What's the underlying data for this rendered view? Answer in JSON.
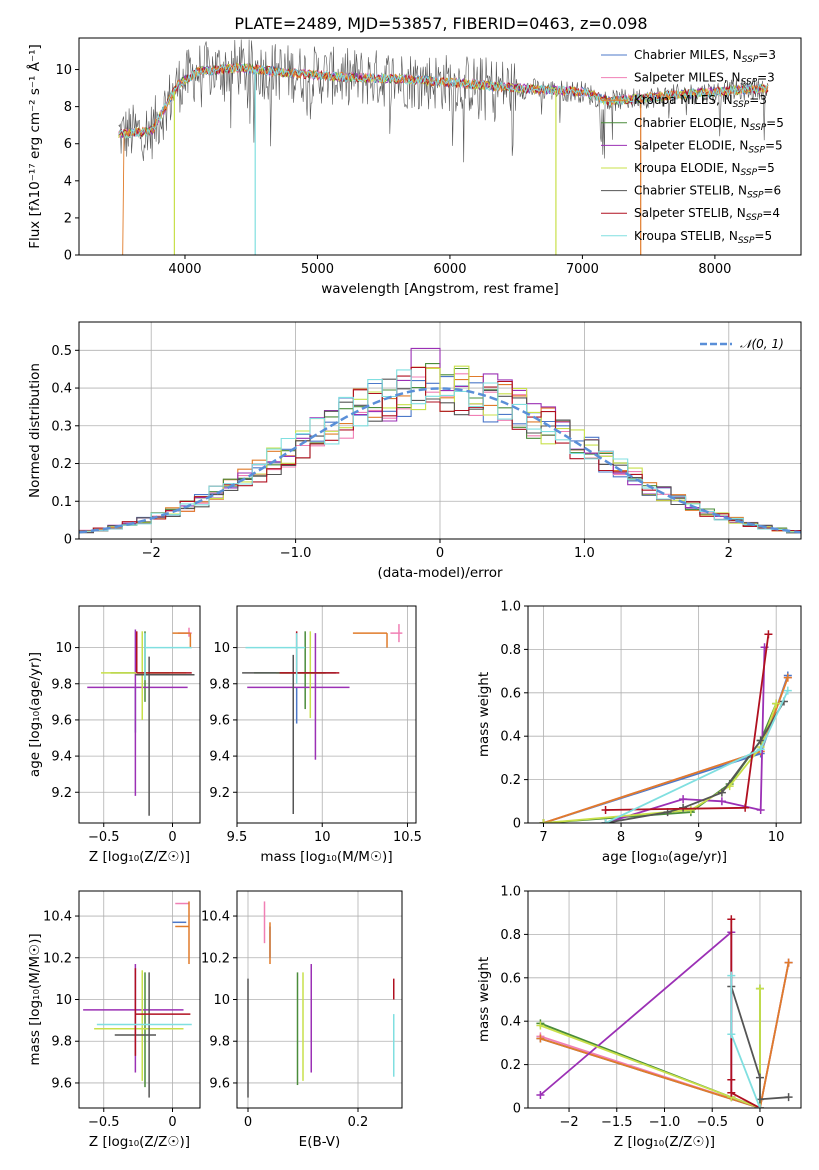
{
  "title": "PLATE=2489, MJD=53857, FIBERID=0463, z=0.098",
  "chart_data": [
    {
      "id": "spectrum",
      "type": "line",
      "xlabel": "wavelength [Angstrom, rest frame]",
      "ylabel": "Flux [fλ10⁻¹⁷ erg cm⁻² s⁻¹ Å⁻¹]",
      "xlim": [
        3200,
        8650
      ],
      "ylim": [
        0,
        11.7
      ],
      "xticks": [
        4000,
        5000,
        6000,
        7000,
        8000
      ],
      "yticks": [
        0,
        2,
        4,
        6,
        8,
        10
      ],
      "grid": false,
      "legend_position": "top-right",
      "data_start": 3500,
      "data_end": 8400,
      "series": [
        {
          "name": "Chabrier MILES, N",
          "sub": "SSP",
          "suffix": "=3",
          "color": "#4c78c9"
        },
        {
          "name": "Salpeter MILES, N",
          "sub": "SSP",
          "suffix": "=3",
          "color": "#f07fb4"
        },
        {
          "name": "Kroupa MILES, N",
          "sub": "SSP",
          "suffix": "=3",
          "color": "#e07b2a"
        },
        {
          "name": "Chabrier ELODIE, N",
          "sub": "SSP",
          "suffix": "=5",
          "color": "#4a8c3a"
        },
        {
          "name": "Salpeter ELODIE, N",
          "sub": "SSP",
          "suffix": "=5",
          "color": "#9b30b5"
        },
        {
          "name": "Kroupa ELODIE, N",
          "sub": "SSP",
          "suffix": "=5",
          "color": "#c8e04a"
        },
        {
          "name": "Chabrier STELIB, N",
          "sub": "SSP",
          "suffix": "=6",
          "color": "#555555"
        },
        {
          "name": "Salpeter STELIB, N",
          "sub": "SSP",
          "suffix": "=4",
          "color": "#b01020"
        },
        {
          "name": "Kroupa STELIB, N",
          "sub": "SSP",
          "suffix": "=5",
          "color": "#80dfe0"
        }
      ],
      "continuum": [
        [
          3500,
          6.5
        ],
        [
          3750,
          6.7
        ],
        [
          3950,
          9.2
        ],
        [
          4100,
          9.9
        ],
        [
          4400,
          10.1
        ],
        [
          4800,
          9.8
        ],
        [
          5200,
          9.6
        ],
        [
          5600,
          9.5
        ],
        [
          6000,
          9.3
        ],
        [
          6500,
          9.0
        ],
        [
          7000,
          8.8
        ],
        [
          7200,
          8.3
        ],
        [
          7500,
          8.5
        ],
        [
          8000,
          8.8
        ],
        [
          8400,
          9.0
        ]
      ],
      "dips": [
        {
          "x": 3920,
          "color": "#c8e04a"
        },
        {
          "x": 4530,
          "color": "#80dfe0"
        },
        {
          "x": 6800,
          "color": "#c8e04a"
        },
        {
          "x": 7440,
          "color": "#e07b2a"
        }
      ]
    },
    {
      "id": "residuals",
      "type": "histogram",
      "xlabel": "(data-model)/error",
      "ylabel": "Normed distribution",
      "xlim": [
        -2.5,
        2.5
      ],
      "ylim": [
        0,
        0.575
      ],
      "xticks": [
        -2,
        -1,
        0,
        1,
        2
      ],
      "yticks": [
        0.0,
        0.1,
        0.2,
        0.3,
        0.4,
        0.5
      ],
      "grid": true,
      "legend_position": "top-right",
      "gaussian": {
        "label": "𝒩(0, 1)",
        "color": "#5a8fd8",
        "mean": 0,
        "sigma": 1
      },
      "bin_width": 0.1
    },
    {
      "id": "age_vs_Z",
      "type": "errorbar",
      "xlabel": "Z [log₁₀(Z/Z☉)]",
      "ylabel": "age  [log₁₀(age/yr)]",
      "xlim": [
        -0.68,
        0.2
      ],
      "ylim": [
        9.03,
        10.23
      ],
      "xticks": [
        -0.5,
        0.0
      ],
      "yticks": [
        9.2,
        9.4,
        9.6,
        9.8,
        10.0
      ],
      "grid": true,
      "points": [
        {
          "c": "#4c78c9",
          "x": -0.27,
          "xerr": [
            0.0,
            0.0
          ],
          "y": 9.78,
          "yerr": [
            0.25,
            0.0
          ]
        },
        {
          "c": "#f07fb4",
          "x": 0.12,
          "xerr": [
            0.08,
            0.02
          ],
          "y": 10.08,
          "yerr": [
            0.02,
            0.03
          ]
        },
        {
          "c": "#e07b2a",
          "x": 0.13,
          "xerr": [
            0.13,
            0.0
          ],
          "y": 10.08,
          "yerr": [
            0.08,
            0.0
          ]
        },
        {
          "c": "#4a8c3a",
          "x": -0.2,
          "xerr": [
            0.25,
            0.18
          ],
          "y": 9.86,
          "yerr": [
            0.16,
            0.23
          ]
        },
        {
          "c": "#9b30b5",
          "x": -0.27,
          "xerr": [
            0.35,
            0.38
          ],
          "y": 9.78,
          "yerr": [
            0.6,
            0.32
          ]
        },
        {
          "c": "#c8e04a",
          "x": -0.22,
          "xerr": [
            0.3,
            0.32
          ],
          "y": 9.86,
          "yerr": [
            0.26,
            0.23
          ]
        },
        {
          "c": "#555555",
          "x": -0.17,
          "xerr": [
            0.1,
            0.33
          ],
          "y": 9.85,
          "yerr": [
            0.78,
            0.1
          ]
        },
        {
          "c": "#b01020",
          "x": -0.26,
          "xerr": [
            0.0,
            0.4
          ],
          "y": 9.86,
          "yerr": [
            0.0,
            0.23
          ]
        },
        {
          "c": "#80dfe0",
          "x": -0.2,
          "xerr": [
            0.0,
            0.34
          ],
          "y": 10.0,
          "yerr": [
            0.18,
            0.08
          ]
        }
      ]
    },
    {
      "id": "age_vs_mass",
      "type": "errorbar",
      "xlabel": "mass [log₁₀(M/M☉)]",
      "ylabel": "",
      "xlim": [
        9.5,
        10.55
      ],
      "ylim": [
        9.03,
        10.23
      ],
      "xticks": [
        9.5,
        10.0,
        10.5
      ],
      "yticks": [
        9.2,
        9.4,
        9.6,
        9.8,
        10.0
      ],
      "grid": true,
      "points": [
        {
          "c": "#4c78c9",
          "x": 9.85,
          "xerr": [
            0.0,
            0.0
          ],
          "y": 9.78,
          "yerr": [
            0.2,
            0.0
          ]
        },
        {
          "c": "#f07fb4",
          "x": 10.45,
          "xerr": [
            0.05,
            0.02
          ],
          "y": 10.08,
          "yerr": [
            0.05,
            0.05
          ]
        },
        {
          "c": "#e07b2a",
          "x": 10.38,
          "xerr": [
            0.2,
            0.0
          ],
          "y": 10.08,
          "yerr": [
            0.08,
            0.0
          ]
        },
        {
          "c": "#4a8c3a",
          "x": 9.9,
          "xerr": [
            0.3,
            0.12
          ],
          "y": 9.86,
          "yerr": [
            0.2,
            0.23
          ]
        },
        {
          "c": "#9b30b5",
          "x": 9.96,
          "xerr": [
            0.4,
            0.2
          ],
          "y": 9.78,
          "yerr": [
            0.4,
            0.3
          ]
        },
        {
          "c": "#c8e04a",
          "x": 9.93,
          "xerr": [
            0.2,
            0.08
          ],
          "y": 9.86,
          "yerr": [
            0.25,
            0.23
          ]
        },
        {
          "c": "#555555",
          "x": 9.83,
          "xerr": [
            0.3,
            0.25
          ],
          "y": 9.86,
          "yerr": [
            0.78,
            0.1
          ]
        },
        {
          "c": "#b01020",
          "x": 9.85,
          "xerr": [
            0.1,
            0.25
          ],
          "y": 9.86,
          "yerr": [
            0.0,
            0.23
          ]
        },
        {
          "c": "#80dfe0",
          "x": 9.85,
          "xerr": [
            0.3,
            0.05
          ],
          "y": 10.0,
          "yerr": [
            0.2,
            0.08
          ]
        }
      ]
    },
    {
      "id": "weight_vs_age",
      "type": "line",
      "xlabel": "age  [log₁₀(age/yr)]",
      "ylabel": "mass weight",
      "xlim": [
        6.8,
        10.32
      ],
      "ylim": [
        0,
        1.0
      ],
      "xticks": [
        7,
        8,
        9,
        10
      ],
      "yticks": [
        0.0,
        0.2,
        0.4,
        0.6,
        0.8,
        1.0
      ],
      "grid": true,
      "series": [
        {
          "c": "#4c78c9",
          "x": [
            7.0,
            9.8,
            10.15
          ],
          "y": [
            0.0,
            0.32,
            0.68
          ]
        },
        {
          "c": "#f07fb4",
          "x": [
            7.0,
            9.8,
            10.15
          ],
          "y": [
            0.0,
            0.33,
            0.67
          ]
        },
        {
          "c": "#e07b2a",
          "x": [
            7.0,
            9.8,
            10.15
          ],
          "y": [
            0.0,
            0.33,
            0.67
          ]
        },
        {
          "c": "#4a8c3a",
          "x": [
            7.0,
            8.9,
            9.4,
            9.8,
            10.0
          ],
          "y": [
            0.0,
            0.05,
            0.18,
            0.38,
            0.55
          ]
        },
        {
          "c": "#9b30b5",
          "x": [
            7.8,
            8.8,
            9.3,
            9.8,
            9.85
          ],
          "y": [
            0.0,
            0.11,
            0.1,
            0.06,
            0.81
          ]
        },
        {
          "c": "#c8e04a",
          "x": [
            7.0,
            8.9,
            9.4,
            9.8,
            10.0
          ],
          "y": [
            0.0,
            0.06,
            0.17,
            0.35,
            0.55
          ]
        },
        {
          "c": "#555555",
          "x": [
            7.8,
            8.6,
            8.8,
            9.3,
            9.8,
            10.1
          ],
          "y": [
            0.0,
            0.05,
            0.07,
            0.14,
            0.38,
            0.56
          ]
        },
        {
          "c": "#b01020",
          "x": [
            7.8,
            9.6,
            9.9
          ],
          "y": [
            0.06,
            0.07,
            0.87
          ]
        },
        {
          "c": "#80dfe0",
          "x": [
            7.8,
            9.8,
            10.15
          ],
          "y": [
            0.0,
            0.34,
            0.61
          ]
        }
      ]
    },
    {
      "id": "mass_vs_Z",
      "type": "errorbar",
      "xlabel": "Z [log₁₀(Z/Z☉)]",
      "ylabel": "mass [log₁₀(M/M☉)]",
      "xlim": [
        -0.68,
        0.2
      ],
      "ylim": [
        9.48,
        10.52
      ],
      "xticks": [
        -0.5,
        0.0
      ],
      "yticks": [
        9.6,
        9.8,
        10.0,
        10.2,
        10.4
      ],
      "grid": true,
      "points": [
        {
          "c": "#4c78c9",
          "x": 0.1,
          "xerr": [
            0.1,
            0.0
          ],
          "y": 10.37,
          "yerr": [
            0.0,
            0.0
          ]
        },
        {
          "c": "#f07fb4",
          "x": 0.12,
          "xerr": [
            0.1,
            0.0
          ],
          "y": 10.46,
          "yerr": [
            0.0,
            0.0
          ]
        },
        {
          "c": "#e07b2a",
          "x": 0.12,
          "xerr": [
            0.1,
            0.0
          ],
          "y": 10.35,
          "yerr": [
            0.18,
            0.12
          ]
        },
        {
          "c": "#4a8c3a",
          "x": -0.2,
          "xerr": [
            0.35,
            0.2
          ],
          "y": 9.86,
          "yerr": [
            0.28,
            0.27
          ]
        },
        {
          "c": "#9b30b5",
          "x": -0.27,
          "xerr": [
            0.38,
            0.35
          ],
          "y": 9.95,
          "yerr": [
            0.3,
            0.22
          ]
        },
        {
          "c": "#c8e04a",
          "x": -0.22,
          "xerr": [
            0.35,
            0.3
          ],
          "y": 9.86,
          "yerr": [
            0.25,
            0.28
          ]
        },
        {
          "c": "#555555",
          "x": -0.17,
          "xerr": [
            0.25,
            0.05
          ],
          "y": 9.83,
          "yerr": [
            0.3,
            0.3
          ]
        },
        {
          "c": "#b01020",
          "x": -0.27,
          "xerr": [
            0.0,
            0.4
          ],
          "y": 9.93,
          "yerr": [
            0.2,
            0.22
          ]
        },
        {
          "c": "#80dfe0",
          "x": -0.2,
          "xerr": [
            0.35,
            0.34
          ],
          "y": 9.88,
          "yerr": [
            0.0,
            0.0
          ]
        }
      ]
    },
    {
      "id": "mass_vs_ebv",
      "type": "errorbar",
      "xlabel": "E(B-V)",
      "ylabel": "",
      "xlim": [
        -0.02,
        0.28
      ],
      "ylim": [
        9.48,
        10.52
      ],
      "xticks": [
        0.0,
        0.2
      ],
      "yticks": [
        9.6,
        9.8,
        10.0,
        10.2,
        10.4
      ],
      "grid": true,
      "points": [
        {
          "c": "#4c78c9",
          "x": 0.04,
          "xerr": [
            0.0,
            0.0
          ],
          "y": 10.3,
          "yerr": [
            0.1,
            0.05
          ]
        },
        {
          "c": "#f07fb4",
          "x": 0.03,
          "xerr": [
            0.0,
            0.0
          ],
          "y": 10.37,
          "yerr": [
            0.1,
            0.1
          ]
        },
        {
          "c": "#e07b2a",
          "x": 0.04,
          "xerr": [
            0.0,
            0.0
          ],
          "y": 10.27,
          "yerr": [
            0.1,
            0.1
          ]
        },
        {
          "c": "#4a8c3a",
          "x": 0.09,
          "xerr": [
            0.0,
            0.0
          ],
          "y": 9.86,
          "yerr": [
            0.27,
            0.27
          ]
        },
        {
          "c": "#9b30b5",
          "x": 0.115,
          "xerr": [
            0.0,
            0.0
          ],
          "y": 9.95,
          "yerr": [
            0.3,
            0.22
          ]
        },
        {
          "c": "#c8e04a",
          "x": 0.1,
          "xerr": [
            0.0,
            0.0
          ],
          "y": 9.86,
          "yerr": [
            0.25,
            0.27
          ]
        },
        {
          "c": "#555555",
          "x": 0.0,
          "xerr": [
            0.0,
            0.0
          ],
          "y": 9.83,
          "yerr": [
            0.3,
            0.27
          ]
        },
        {
          "c": "#b01020",
          "x": 0.265,
          "xerr": [
            0.0,
            0.0
          ],
          "y": 10.0,
          "yerr": [
            0.0,
            0.1
          ]
        },
        {
          "c": "#80dfe0",
          "x": 0.265,
          "xerr": [
            0.0,
            0.0
          ],
          "y": 9.78,
          "yerr": [
            0.15,
            0.15
          ]
        }
      ]
    },
    {
      "id": "weight_vs_Z",
      "type": "line",
      "xlabel": "Z [log₁₀(Z/Z☉)]",
      "ylabel": "mass weight",
      "xlim": [
        -2.43,
        0.43
      ],
      "ylim": [
        0,
        1.0
      ],
      "xticks": [
        -2.0,
        -1.5,
        -1.0,
        -0.5,
        0.0
      ],
      "yticks": [
        0.0,
        0.2,
        0.4,
        0.6,
        0.8,
        1.0
      ],
      "grid": true,
      "series": [
        {
          "c": "#4c78c9",
          "x": [
            -2.3,
            0.0,
            0.3
          ],
          "y": [
            0.32,
            0.0,
            0.67
          ]
        },
        {
          "c": "#f07fb4",
          "x": [
            -2.3,
            0.0,
            0.3
          ],
          "y": [
            0.33,
            0.0,
            0.67
          ]
        },
        {
          "c": "#e07b2a",
          "x": [
            -2.3,
            0.0,
            0.3
          ],
          "y": [
            0.32,
            0.0,
            0.67
          ]
        },
        {
          "c": "#4a8c3a",
          "x": [
            -2.3,
            -0.3,
            0.0,
            0.0
          ],
          "y": [
            0.39,
            0.05,
            0.0,
            0.55
          ]
        },
        {
          "c": "#9b30b5",
          "x": [
            -2.3,
            -0.3,
            -0.3,
            0.0
          ],
          "y": [
            0.06,
            0.81,
            0.05,
            0.0
          ]
        },
        {
          "c": "#c8e04a",
          "x": [
            -2.3,
            -0.3,
            0.0,
            0.0
          ],
          "y": [
            0.38,
            0.05,
            0.0,
            0.55
          ]
        },
        {
          "c": "#555555",
          "x": [
            -0.3,
            0.0,
            0.0,
            0.3
          ],
          "y": [
            0.56,
            0.14,
            0.04,
            0.05
          ]
        },
        {
          "c": "#b01020",
          "x": [
            -0.3,
            -0.3,
            -0.3,
            0.0
          ],
          "y": [
            0.87,
            0.13,
            0.07,
            0.0
          ]
        },
        {
          "c": "#80dfe0",
          "x": [
            -0.3,
            -0.3,
            0.0
          ],
          "y": [
            0.61,
            0.34,
            0.0
          ]
        }
      ]
    }
  ]
}
